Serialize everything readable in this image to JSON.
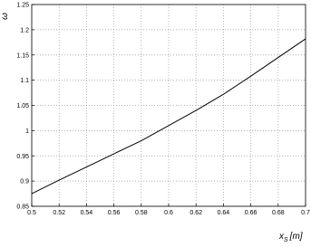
{
  "chart_data": {
    "type": "line",
    "ylabel": "ω",
    "xlabel": {
      "main": "x",
      "sub": "S",
      "unit": "[m]"
    },
    "x": [
      0.5,
      0.52,
      0.54,
      0.56,
      0.58,
      0.6,
      0.62,
      0.64,
      0.66,
      0.68,
      0.7
    ],
    "series": [
      {
        "color": "#000000",
        "values": [
          0.875,
          0.902,
          0.928,
          0.954,
          0.98,
          1.01,
          1.04,
          1.072,
          1.108,
          1.145,
          1.182
        ]
      }
    ],
    "xlim": [
      0.5,
      0.7
    ],
    "xticks": [
      0.5,
      0.52,
      0.54,
      0.56,
      0.58,
      0.6,
      0.62,
      0.64,
      0.66,
      0.68,
      0.7
    ],
    "ylim": [
      0.85,
      1.25
    ],
    "yticks": [
      0.85,
      0.9,
      0.95,
      1,
      1.05,
      1.1,
      1.15,
      1.2,
      1.25
    ],
    "grid": true
  }
}
